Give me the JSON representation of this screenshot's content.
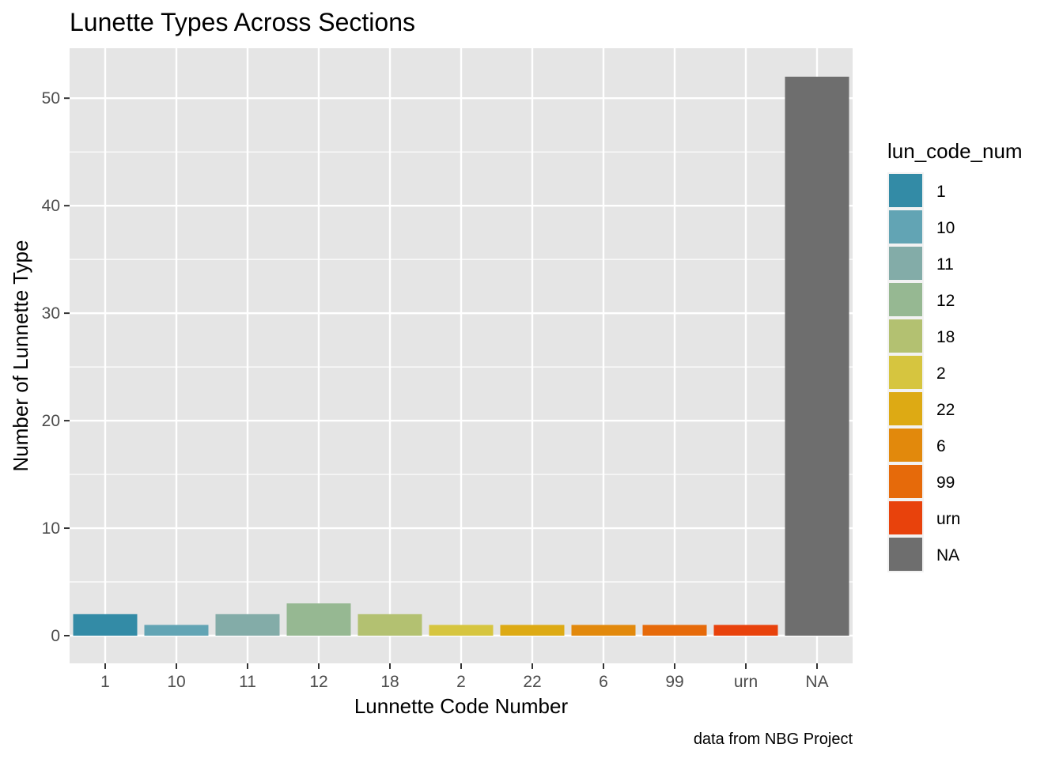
{
  "chart_data": {
    "type": "bar",
    "title": "Lunette Types Across Sections",
    "xlabel": "Lunnette Code Number",
    "ylabel": "Number of Lunnette Type",
    "caption": "data from NBG Project",
    "categories": [
      "1",
      "10",
      "11",
      "12",
      "18",
      "2",
      "22",
      "6",
      "99",
      "urn",
      "NA"
    ],
    "values": [
      2,
      1,
      2,
      3,
      2,
      1,
      1,
      1,
      1,
      1,
      52
    ],
    "colors": [
      "#338BA6",
      "#62A4B4",
      "#83ACA8",
      "#96B892",
      "#B3C171",
      "#D6C53F",
      "#DDAA14",
      "#E2890C",
      "#E66A0A",
      "#E8420C",
      "#6E6E6E"
    ],
    "ylim": [
      0,
      54.6
    ],
    "yticks": [
      0,
      10,
      20,
      30,
      40,
      50
    ],
    "grid": true,
    "background": "#E5E5E5",
    "legend": {
      "title": "lun_code_num",
      "placement": "right",
      "entries": [
        "1",
        "10",
        "11",
        "12",
        "18",
        "2",
        "22",
        "6",
        "99",
        "urn",
        "NA"
      ]
    }
  }
}
